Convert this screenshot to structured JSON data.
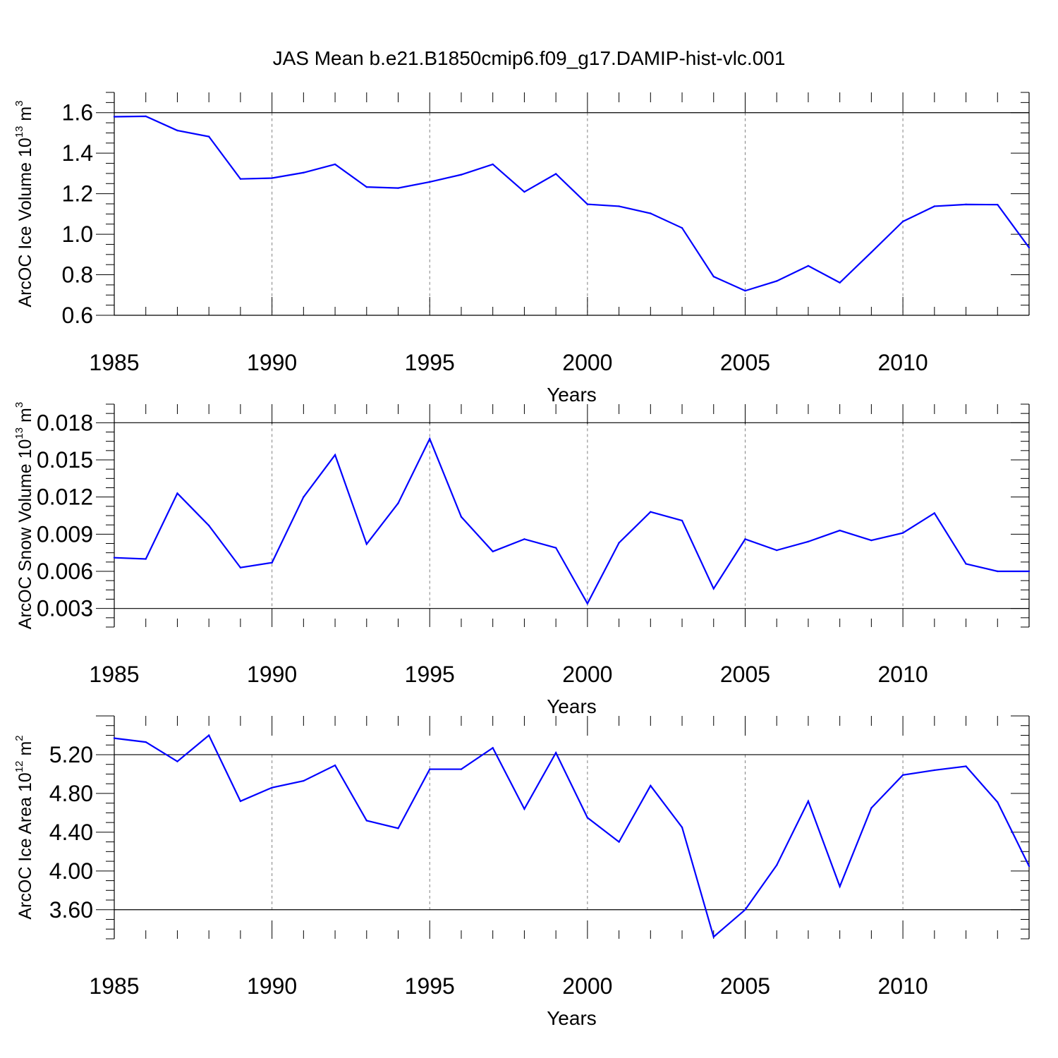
{
  "title": "JAS Mean b.e21.B1850cmip6.f09_g17.DAMIP-hist-vlc.001",
  "colors": {
    "line": "#0000ff",
    "axis": "#000000",
    "grid": "#808080"
  },
  "chart_data": [
    {
      "type": "line",
      "ylabel": "ArcOC Ice Volume 10",
      "ylabel_sup": "13",
      "ylabel_unit": " m",
      "ylabel_unit_sup": "3",
      "xlabel": "Years",
      "xlim": [
        1985,
        2014
      ],
      "ylim": [
        0.6,
        1.7
      ],
      "yticks": [
        0.6,
        0.8,
        1.0,
        1.2,
        1.4,
        1.6
      ],
      "ytick_labels": [
        "0.6",
        "0.8",
        "1.0",
        "1.2",
        "1.4",
        "1.6"
      ],
      "xticks": [
        1985,
        1990,
        1995,
        2000,
        2005,
        2010
      ],
      "xtick_labels": [
        "1985",
        "1990",
        "1995",
        "2000",
        "2005",
        "2010"
      ],
      "x": [
        1985,
        1986,
        1987,
        1988,
        1989,
        1990,
        1991,
        1992,
        1993,
        1994,
        1995,
        1996,
        1997,
        1998,
        1999,
        2000,
        2001,
        2002,
        2003,
        2004,
        2005,
        2006,
        2007,
        2008,
        2009,
        2010,
        2011,
        2012,
        2013,
        2014
      ],
      "values": [
        1.58,
        1.582,
        1.512,
        1.482,
        1.273,
        1.277,
        1.304,
        1.345,
        1.233,
        1.228,
        1.258,
        1.294,
        1.345,
        1.209,
        1.298,
        1.148,
        1.138,
        1.103,
        1.031,
        0.791,
        0.721,
        0.769,
        0.844,
        0.761,
        0.911,
        1.063,
        1.138,
        1.147,
        1.146,
        0.934
      ]
    },
    {
      "type": "line",
      "ylabel": "ArcOC Snow Volume 10",
      "ylabel_sup": "13",
      "ylabel_unit": " m",
      "ylabel_unit_sup": "3",
      "xlabel": "Years",
      "xlim": [
        1985,
        2014
      ],
      "ylim": [
        0.0015,
        0.0195
      ],
      "yticks": [
        0.003,
        0.006,
        0.009,
        0.012,
        0.015,
        0.018
      ],
      "ytick_labels": [
        "0.003",
        "0.006",
        "0.009",
        "0.012",
        "0.015",
        "0.018"
      ],
      "xticks": [
        1985,
        1990,
        1995,
        2000,
        2005,
        2010
      ],
      "xtick_labels": [
        "1985",
        "1990",
        "1995",
        "2000",
        "2005",
        "2010"
      ],
      "x": [
        1985,
        1986,
        1987,
        1988,
        1989,
        1990,
        1991,
        1992,
        1993,
        1994,
        1995,
        1996,
        1997,
        1998,
        1999,
        2000,
        2001,
        2002,
        2003,
        2004,
        2005,
        2006,
        2007,
        2008,
        2009,
        2010,
        2011,
        2012,
        2013,
        2014
      ],
      "values": [
        0.0071,
        0.007,
        0.0123,
        0.0097,
        0.0063,
        0.0067,
        0.012,
        0.0154,
        0.0082,
        0.0115,
        0.0167,
        0.0104,
        0.0076,
        0.0086,
        0.0079,
        0.0034,
        0.0083,
        0.0108,
        0.0101,
        0.0046,
        0.0086,
        0.0077,
        0.0084,
        0.0093,
        0.0085,
        0.0091,
        0.0107,
        0.0066,
        0.006,
        0.006
      ]
    },
    {
      "type": "line",
      "ylabel": "ArcOC Ice Area 10",
      "ylabel_sup": "12",
      "ylabel_unit": " m",
      "ylabel_unit_sup": "2",
      "xlabel": "Years",
      "xlim": [
        1985,
        2014
      ],
      "ylim": [
        3.3,
        5.6
      ],
      "yticks": [
        3.6,
        4.0,
        4.4,
        4.8,
        5.2
      ],
      "ytick_labels": [
        "3.60",
        "4.00",
        "4.40",
        "4.80",
        "5.20"
      ],
      "xticks": [
        1985,
        1990,
        1995,
        2000,
        2005,
        2010
      ],
      "xtick_labels": [
        "1985",
        "1990",
        "1995",
        "2000",
        "2005",
        "2010"
      ],
      "x": [
        1985,
        1986,
        1987,
        1988,
        1989,
        1990,
        1991,
        1992,
        1993,
        1994,
        1995,
        1996,
        1997,
        1998,
        1999,
        2000,
        2001,
        2002,
        2003,
        2004,
        2005,
        2006,
        2007,
        2008,
        2009,
        2010,
        2011,
        2012,
        2013,
        2014
      ],
      "values": [
        5.37,
        5.33,
        5.13,
        5.4,
        4.72,
        4.86,
        4.93,
        5.09,
        4.52,
        4.44,
        5.05,
        5.05,
        5.27,
        4.64,
        5.22,
        4.55,
        4.3,
        4.88,
        4.45,
        3.32,
        3.6,
        4.06,
        4.72,
        3.84,
        4.65,
        4.99,
        5.04,
        5.08,
        4.71,
        4.05
      ]
    }
  ]
}
